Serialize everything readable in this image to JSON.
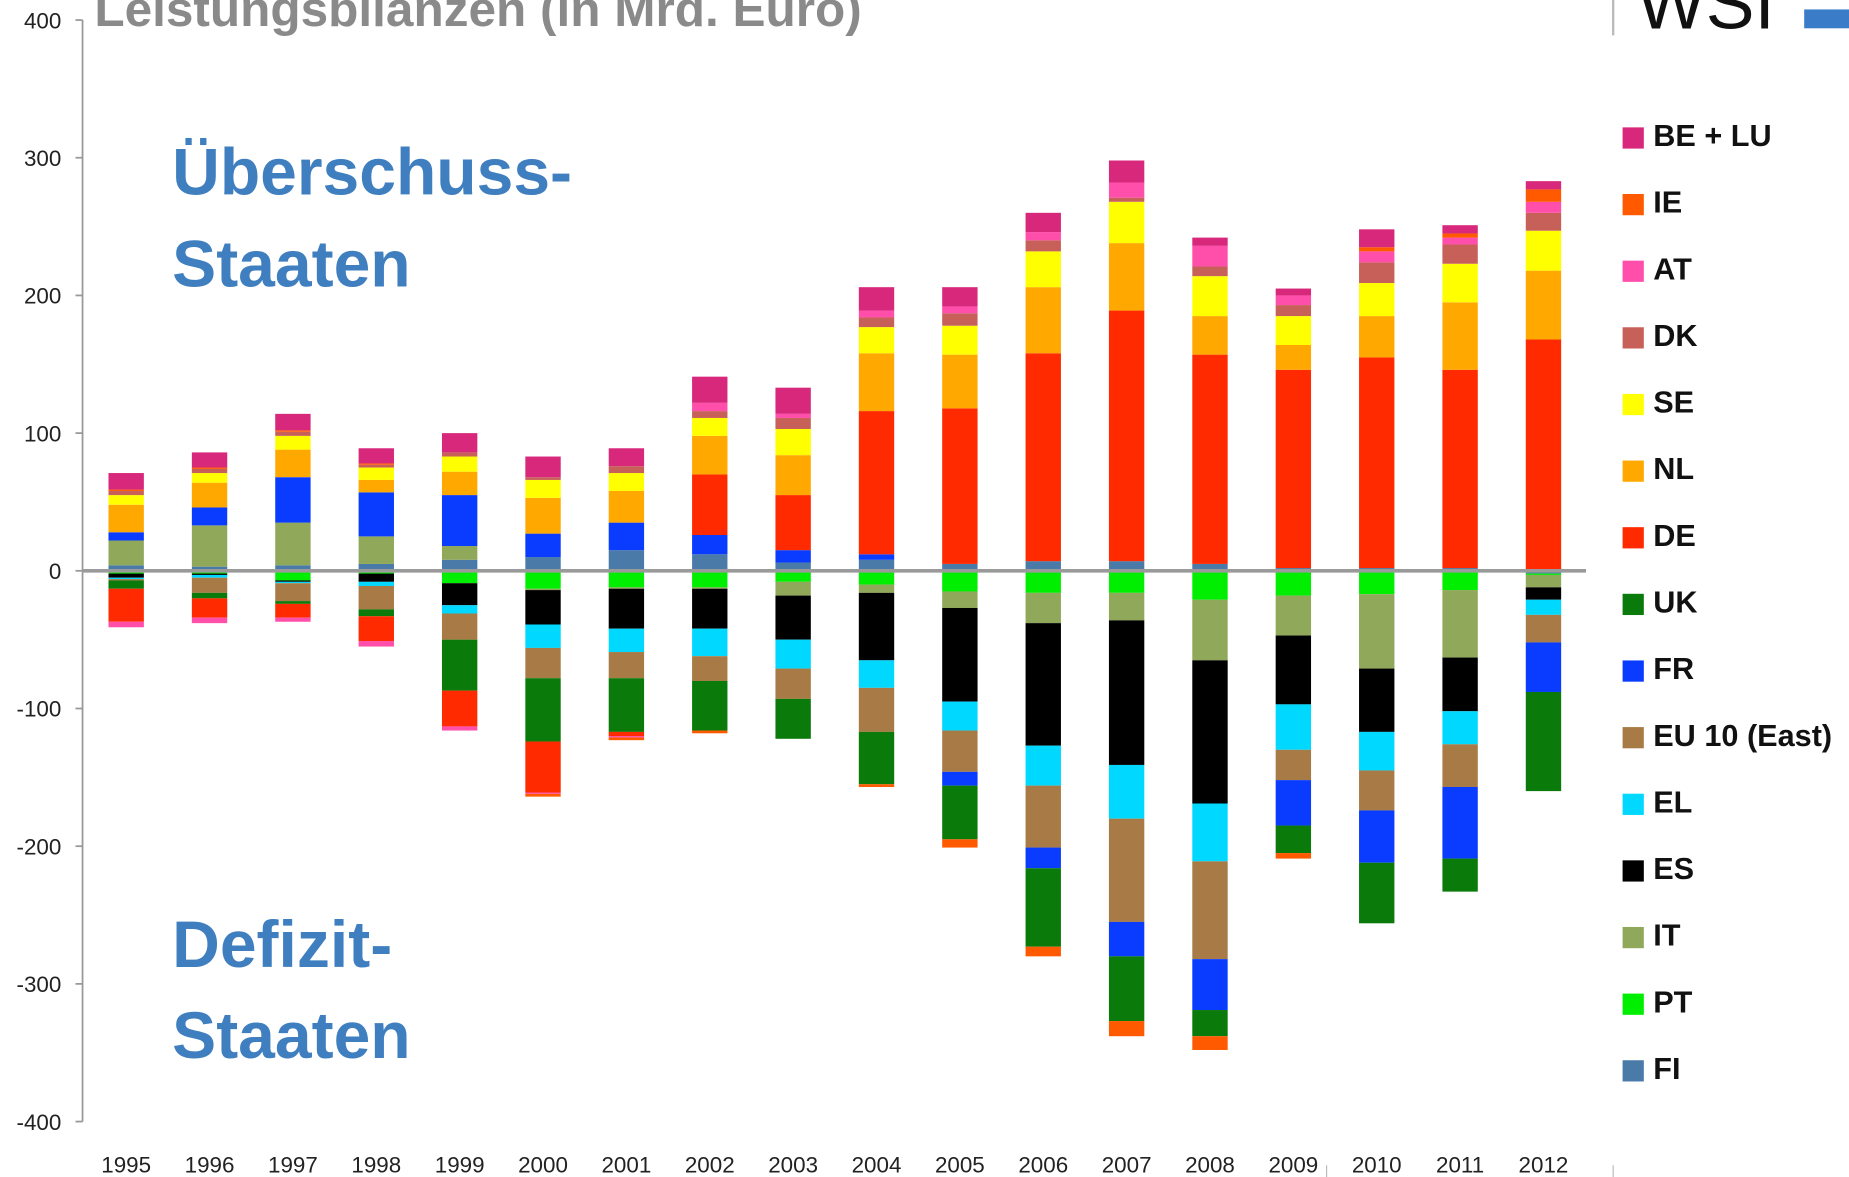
{
  "chart_data": {
    "type": "bar",
    "stacked": true,
    "title": "Leistungsbilanzen (in Mrd. Euro)",
    "logo": "WSI",
    "annotations": [
      "Überschuss-",
      "Staaten",
      "Defizit-",
      "Staaten"
    ],
    "categories": [
      "1995",
      "1996",
      "1997",
      "1998",
      "1999",
      "2000",
      "2001",
      "2002",
      "2003",
      "2004",
      "2005",
      "2006",
      "2007",
      "2008",
      "2009",
      "2010",
      "2011",
      "2012"
    ],
    "ylim": [
      -400,
      400
    ],
    "yticks": [
      -400,
      -300,
      -200,
      -100,
      0,
      100,
      200,
      300,
      400
    ],
    "series": [
      {
        "name": "BE + LU",
        "color": "#d8287b",
        "values": [
          12,
          11,
          12,
          11,
          14,
          15,
          13,
          19,
          19,
          17,
          14,
          14,
          16,
          6,
          5,
          13,
          6,
          6
        ]
      },
      {
        "name": "IE",
        "color": "#ff5a00",
        "values": [
          1,
          1,
          1,
          1,
          0,
          -2,
          -2,
          -2,
          0,
          -2,
          -6,
          -7,
          -11,
          -10,
          -4,
          3,
          3,
          9
        ]
      },
      {
        "name": "AT",
        "color": "#ff4faa",
        "values": [
          -4,
          -4,
          -3,
          -4,
          -3,
          -1,
          -1,
          6,
          3,
          5,
          5,
          6,
          11,
          15,
          7,
          8,
          5,
          8
        ]
      },
      {
        "name": "DK",
        "color": "#c8605a",
        "values": [
          3,
          3,
          3,
          2,
          3,
          2,
          5,
          5,
          8,
          7,
          9,
          8,
          3,
          7,
          8,
          15,
          14,
          13
        ]
      },
      {
        "name": "SE",
        "color": "#ffff00",
        "values": [
          7,
          7,
          10,
          9,
          11,
          13,
          13,
          13,
          19,
          19,
          21,
          26,
          30,
          29,
          21,
          24,
          28,
          29
        ]
      },
      {
        "name": "NL",
        "color": "#ffa800",
        "values": [
          20,
          18,
          20,
          9,
          17,
          26,
          23,
          28,
          29,
          42,
          39,
          48,
          49,
          28,
          18,
          30,
          49,
          50
        ]
      },
      {
        "name": "DE",
        "color": "#ff2a00",
        "values": [
          -24,
          -14,
          -10,
          -18,
          -26,
          -37,
          -3,
          44,
          40,
          104,
          113,
          151,
          182,
          152,
          144,
          153,
          144,
          168
        ]
      },
      {
        "name": "UK",
        "color": "#0a7a0a",
        "values": [
          -6,
          -4,
          -2,
          -5,
          -37,
          -46,
          -39,
          -36,
          -29,
          -38,
          -39,
          -57,
          -47,
          -19,
          -20,
          -44,
          -24,
          -72
        ]
      },
      {
        "name": "FR",
        "color": "#0a3cff",
        "values": [
          6,
          13,
          33,
          32,
          37,
          17,
          20,
          14,
          9,
          4,
          -10,
          -15,
          -25,
          -37,
          -33,
          -38,
          -52,
          -36
        ]
      },
      {
        "name": "EU 10 (East)",
        "color": "#a87a45",
        "values": [
          -1,
          -11,
          -13,
          -17,
          -19,
          -22,
          -19,
          -18,
          -22,
          -32,
          -30,
          -45,
          -75,
          -71,
          -22,
          -29,
          -31,
          -20
        ]
      },
      {
        "name": "EL",
        "color": "#00d8ff",
        "values": [
          -1,
          -2,
          -1,
          -3,
          -6,
          -17,
          -17,
          -20,
          -21,
          -20,
          -21,
          -29,
          -39,
          -42,
          -33,
          -28,
          -24,
          -11
        ]
      },
      {
        "name": "ES",
        "color": "#000000",
        "values": [
          -3,
          -1,
          -1,
          -6,
          -16,
          -25,
          -29,
          -29,
          -32,
          -49,
          -68,
          -89,
          -105,
          -104,
          -50,
          -46,
          -39,
          -9
        ]
      },
      {
        "name": "IT",
        "color": "#8fa85a",
        "values": [
          18,
          30,
          31,
          20,
          10,
          -1,
          -1,
          -1,
          -10,
          -6,
          -12,
          -22,
          -20,
          -44,
          -29,
          -54,
          -49,
          -9
        ]
      },
      {
        "name": "PT",
        "color": "#00ee00",
        "values": [
          -2,
          -2,
          -7,
          -2,
          -9,
          -13,
          -12,
          -12,
          -8,
          -10,
          -15,
          -16,
          -16,
          -21,
          -18,
          -17,
          -14,
          -1
        ]
      },
      {
        "name": "FI",
        "color": "#4a7aa8",
        "values": [
          4,
          3,
          4,
          5,
          8,
          10,
          15,
          12,
          6,
          8,
          5,
          7,
          7,
          5,
          2,
          2,
          2,
          -2
        ]
      }
    ]
  }
}
